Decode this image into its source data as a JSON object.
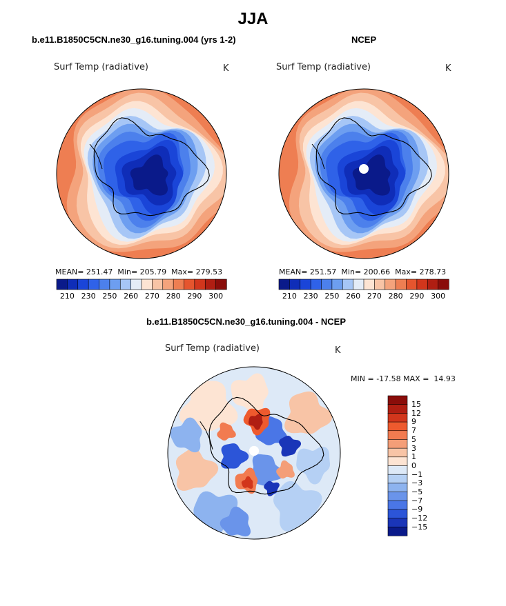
{
  "header": {
    "season": "JJA"
  },
  "panels": {
    "model": {
      "title": "b.e11.B1850C5CN.ne30_g16.tuning.004 (yrs 1-2)",
      "variable": "Surf Temp (radiative)",
      "units": "K",
      "stats": {
        "mean_label": "MEAN=",
        "mean": "251.47",
        "min_label": "Min=",
        "min": "205.79",
        "max_label": "Max=",
        "max": "279.53"
      }
    },
    "obs": {
      "title": "NCEP",
      "variable": "Surf Temp (radiative)",
      "units": "K",
      "stats": {
        "mean_label": "MEAN=",
        "mean": "251.57",
        "min_label": "Min=",
        "min": "200.66",
        "max_label": "Max=",
        "max": "278.73"
      }
    },
    "diff": {
      "title": "b.e11.B1850C5CN.ne30_g16.tuning.004 - NCEP",
      "variable": "Surf Temp (radiative)",
      "units": "K",
      "stats": {
        "min_label": "MIN =",
        "min": "-17.58",
        "max_label": "MAX =",
        "max": "14.93"
      }
    }
  },
  "colorbar_abs": {
    "tick_labels": [
      "210",
      "230",
      "250",
      "260",
      "270",
      "280",
      "290",
      "300"
    ],
    "colors": [
      "#0a1a8a",
      "#0f2db8",
      "#1a45d8",
      "#2f62e8",
      "#4c80ec",
      "#6d9ef0",
      "#a6c6f6",
      "#e4ecf7",
      "#fde4d3",
      "#f8c4a6",
      "#f4a37c",
      "#ee7e52",
      "#e5552e",
      "#d2361c",
      "#b01e12",
      "#8a0d0a"
    ]
  },
  "colorbar_diff": {
    "tick_labels": [
      "15",
      "12",
      "9",
      "7",
      "5",
      "3",
      "1",
      "0",
      "−1",
      "−3",
      "−5",
      "−7",
      "−9",
      "−12",
      "−15"
    ],
    "colors": [
      "#8a0d0a",
      "#b01e12",
      "#d2361c",
      "#ee5a2e",
      "#f27b50",
      "#f49e78",
      "#f8c4a6",
      "#fde4d3",
      "#dde9f7",
      "#b5d0f4",
      "#8db3ef",
      "#6a94ea",
      "#4a76e6",
      "#2c55d8",
      "#1a35b8",
      "#0a1a8a"
    ]
  },
  "chart_data": {
    "type": "map",
    "projection": "south polar stereographic",
    "season": "JJA",
    "variable": "Surf Temp (radiative)",
    "units": "K",
    "maps": [
      {
        "name": "b.e11.B1850C5CN.ne30_g16.tuning.004 (yrs 1-2)",
        "mean": 251.47,
        "min": 205.79,
        "max": 279.53,
        "contour_ticks": [
          210,
          230,
          250,
          260,
          270,
          280,
          290,
          300
        ]
      },
      {
        "name": "NCEP",
        "mean": 251.57,
        "min": 200.66,
        "max": 278.73,
        "contour_ticks": [
          210,
          230,
          250,
          260,
          270,
          280,
          290,
          300
        ]
      },
      {
        "name": "b.e11.B1850C5CN.ne30_g16.tuning.004 - NCEP",
        "min": -17.58,
        "max": 14.93,
        "contour_ticks": [
          -15,
          -12,
          -9,
          -7,
          -5,
          -3,
          -1,
          0,
          1,
          3,
          5,
          7,
          9,
          12,
          15
        ]
      }
    ]
  }
}
